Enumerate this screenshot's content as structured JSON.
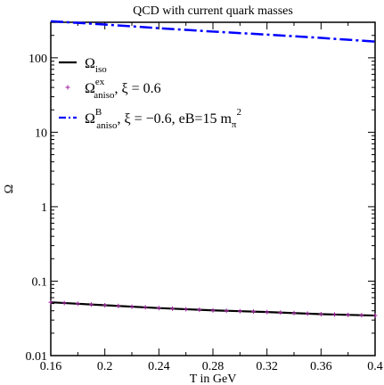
{
  "chart_data": {
    "type": "line",
    "title": "QCD with current quark masses",
    "xlabel": "T in GeV",
    "ylabel": "Ω",
    "xlim": [
      0.16,
      0.4
    ],
    "ylim": [
      0.01,
      300
    ],
    "yscale": "log",
    "grid": false,
    "legend_position": "top-left",
    "x_ticks": [
      "0.16",
      "0.2",
      "0.24",
      "0.28",
      "0.32",
      "0.36",
      "0.4"
    ],
    "y_ticks": [
      "0.01",
      "0.1",
      "1",
      "10",
      "100"
    ],
    "series": [
      {
        "name": "Ω_iso",
        "legend": {
          "base": "Ω",
          "sub": "iso",
          "sup": "",
          "suffix": ""
        },
        "style": "solid",
        "color": "#000000",
        "x": [
          0.16,
          0.2,
          0.24,
          0.28,
          0.32,
          0.36,
          0.4
        ],
        "y": [
          0.052,
          0.0475,
          0.0435,
          0.0405,
          0.0385,
          0.036,
          0.0345
        ]
      },
      {
        "name": "Ω^ex_aniso, ξ = 0.6",
        "legend": {
          "base": "Ω",
          "sub": "aniso",
          "sup": "ex",
          "suffix": ", ξ = 0.6"
        },
        "style": "plus",
        "color": "#a020a0",
        "x": [
          0.16,
          0.2,
          0.24,
          0.28,
          0.32,
          0.36,
          0.4
        ],
        "y": [
          0.052,
          0.0475,
          0.0435,
          0.0405,
          0.0385,
          0.036,
          0.0345
        ]
      },
      {
        "name": "Ω^B_aniso, ξ = −0.6, eB=15 m_π^2",
        "legend": {
          "base": "Ω",
          "sub": "aniso",
          "sup": "B",
          "suffix": ", ξ = −0.6, eB=15 m",
          "suffix_sub": "π",
          "suffix_sup": "2"
        },
        "style": "dashdot",
        "color": "#0000ff",
        "x": [
          0.16,
          0.2,
          0.24,
          0.28,
          0.32,
          0.36,
          0.4
        ],
        "y": [
          310,
          280,
          250,
          225,
          205,
          185,
          165
        ]
      }
    ]
  }
}
